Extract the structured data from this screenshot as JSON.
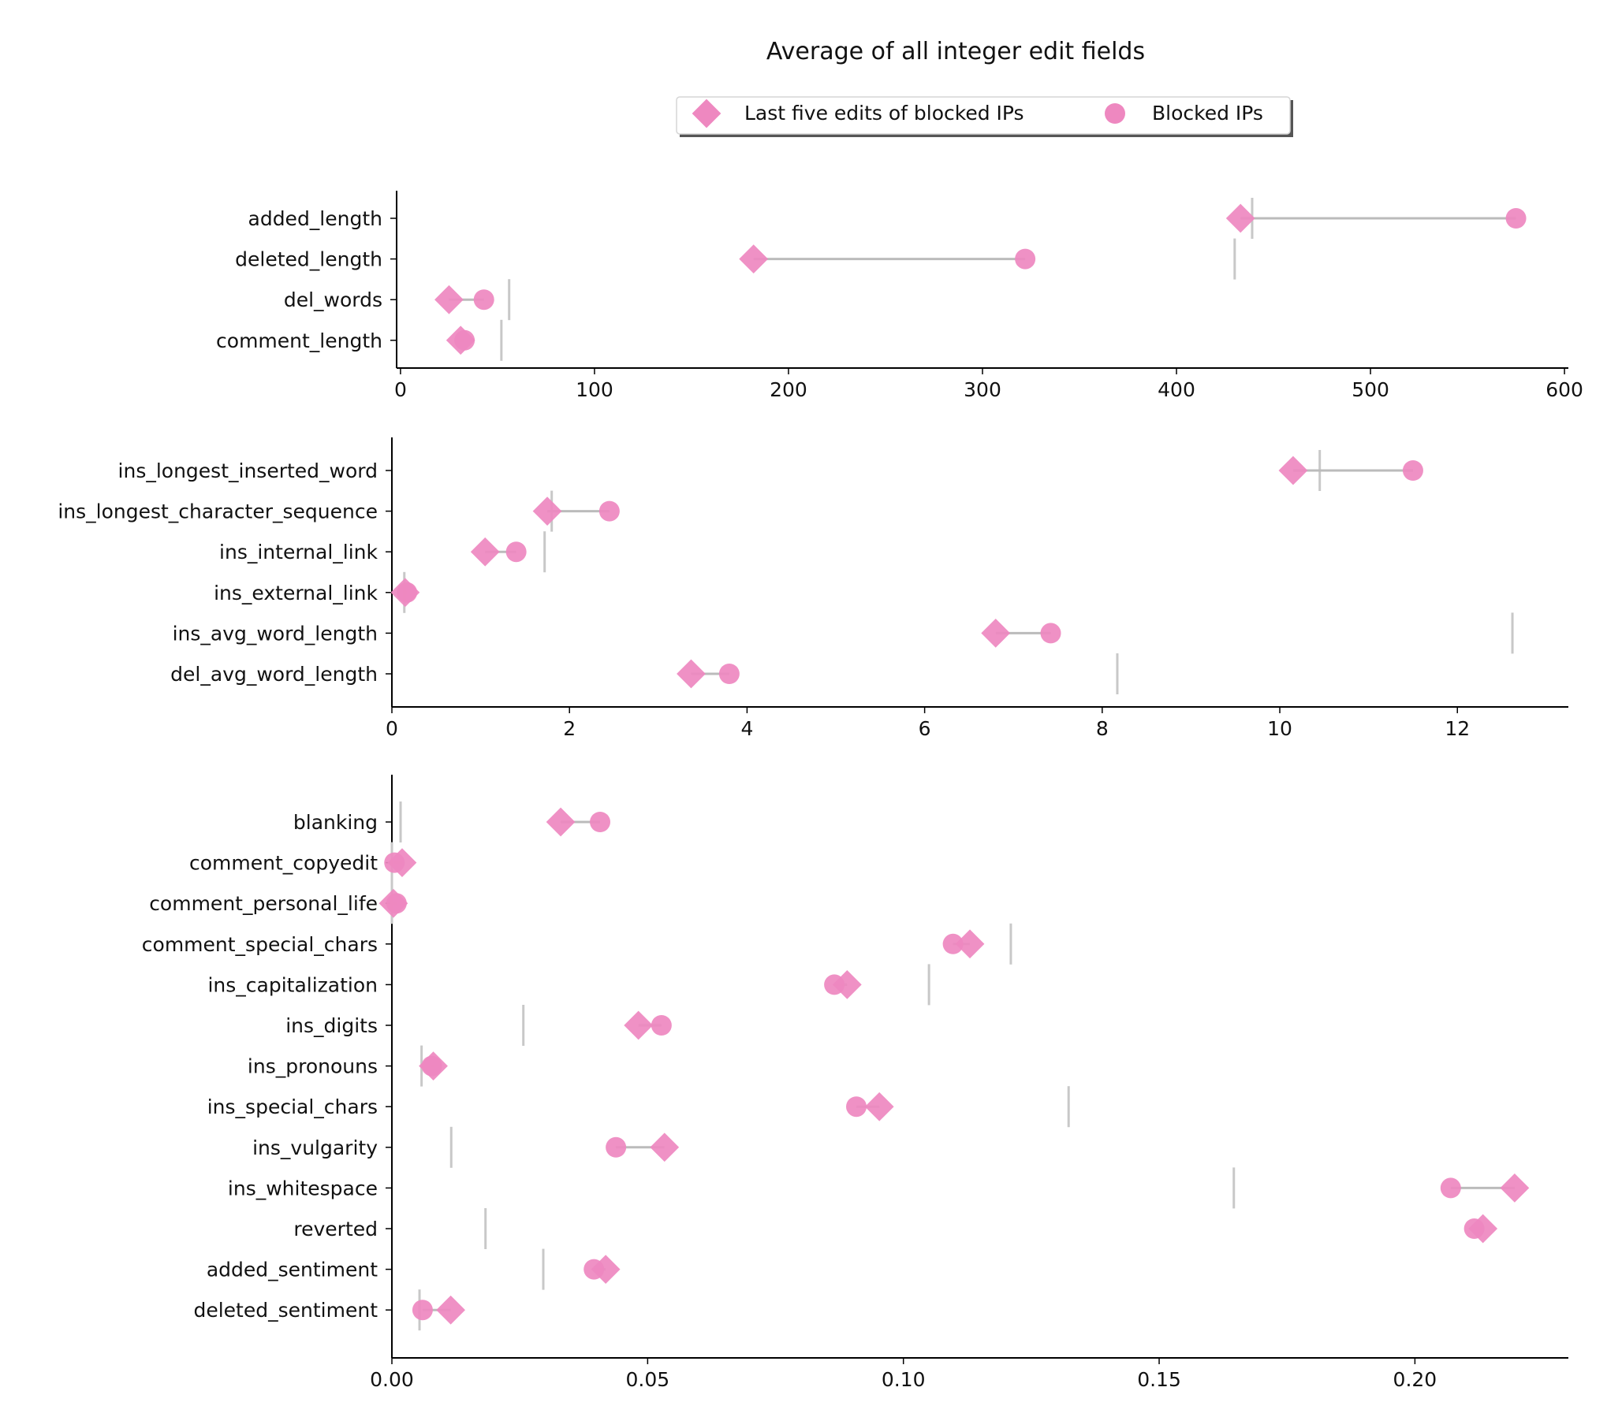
{
  "chart_data": {
    "title": "Average of all integer edit fields",
    "type": "dumbbell",
    "colors": {
      "marker": "#ee88c0",
      "connector": "#bbbbbb",
      "reference": "#c8c8c8",
      "axis": "#000000"
    },
    "legend": {
      "placement": "top-center",
      "entries": [
        {
          "name": "Last five edits of blocked IPs",
          "marker": "diamond"
        },
        {
          "name": "Blocked IPs",
          "marker": "circle"
        }
      ]
    },
    "panels": [
      {
        "xlim": [
          -2,
          602
        ],
        "xticks": [
          0,
          100,
          200,
          300,
          400,
          500,
          600
        ],
        "xtick_labels": [
          "0",
          "100",
          "200",
          "300",
          "400",
          "500",
          "600"
        ],
        "rows": [
          {
            "name": "added_length",
            "last_five": 433,
            "blocked": 575,
            "reference": 439
          },
          {
            "name": "deleted_length",
            "last_five": 182,
            "blocked": 322,
            "reference": 430
          },
          {
            "name": "del_words",
            "last_five": 25,
            "blocked": 43,
            "reference": 56
          },
          {
            "name": "comment_length",
            "last_five": 31,
            "blocked": 33,
            "reference": 52
          }
        ]
      },
      {
        "xlim": [
          0,
          13.25
        ],
        "xticks": [
          0,
          2,
          4,
          6,
          8,
          10,
          12
        ],
        "xtick_labels": [
          "0",
          "2",
          "4",
          "6",
          "8",
          "10",
          "12"
        ],
        "rows": [
          {
            "name": "ins_longest_inserted_word",
            "last_five": 10.15,
            "blocked": 11.5,
            "reference": 10.45
          },
          {
            "name": "ins_longest_character_sequence",
            "last_five": 1.75,
            "blocked": 2.45,
            "reference": 1.8
          },
          {
            "name": "ins_internal_link",
            "last_five": 1.05,
            "blocked": 1.4,
            "reference": 1.72
          },
          {
            "name": "ins_external_link",
            "last_five": 0.15,
            "blocked": 0.17,
            "reference": 0.14
          },
          {
            "name": "ins_avg_word_length",
            "last_five": 6.8,
            "blocked": 7.42,
            "reference": 12.62
          },
          {
            "name": "del_avg_word_length",
            "last_five": 3.37,
            "blocked": 3.8,
            "reference": 8.17
          }
        ]
      },
      {
        "xlim": [
          0,
          0.23
        ],
        "xticks": [
          0,
          0.05,
          0.1,
          0.15,
          0.2
        ],
        "xtick_labels": [
          "0.00",
          "0.05",
          "0.10",
          "0.15",
          "0.20"
        ],
        "rows": [
          {
            "name": "blanking",
            "last_five": 0.033,
            "blocked": 0.0407,
            "reference": 0.0017
          },
          {
            "name": "comment_copyedit",
            "last_five": 0.002,
            "blocked": 0.0005,
            "reference": 0.0
          },
          {
            "name": "comment_personal_life",
            "last_five": 0.0003,
            "blocked": 0.0009,
            "reference": 0.0
          },
          {
            "name": "comment_special_chars",
            "last_five": 0.113,
            "blocked": 0.1097,
            "reference": 0.121
          },
          {
            "name": "ins_capitalization",
            "last_five": 0.089,
            "blocked": 0.0865,
            "reference": 0.105
          },
          {
            "name": "ins_digits",
            "last_five": 0.0482,
            "blocked": 0.0527,
            "reference": 0.0257
          },
          {
            "name": "ins_pronouns",
            "last_five": 0.0081,
            "blocked": 0.0078,
            "reference": 0.0058
          },
          {
            "name": "ins_special_chars",
            "last_five": 0.0953,
            "blocked": 0.0908,
            "reference": 0.1323
          },
          {
            "name": "ins_vulgarity",
            "last_five": 0.0533,
            "blocked": 0.0438,
            "reference": 0.0116
          },
          {
            "name": "ins_whitespace",
            "last_five": 0.2195,
            "blocked": 0.207,
            "reference": 0.1646
          },
          {
            "name": "reverted",
            "last_five": 0.2133,
            "blocked": 0.2116,
            "reference": 0.0183
          },
          {
            "name": "added_sentiment",
            "last_five": 0.0418,
            "blocked": 0.0395,
            "reference": 0.0296
          },
          {
            "name": "deleted_sentiment",
            "last_five": 0.0115,
            "blocked": 0.006,
            "reference": 0.0054
          }
        ]
      }
    ]
  }
}
